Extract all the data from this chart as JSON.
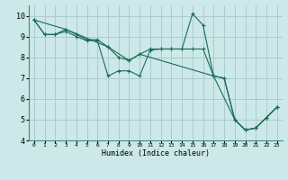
{
  "xlabel": "Humidex (Indice chaleur)",
  "bg_color": "#cce8e8",
  "grid_color": "#aacccc",
  "line_color": "#1a6b5a",
  "xlim": [
    -0.5,
    23.5
  ],
  "ylim": [
    4,
    10.5
  ],
  "xticks": [
    0,
    1,
    2,
    3,
    4,
    5,
    6,
    7,
    8,
    9,
    10,
    11,
    12,
    13,
    14,
    15,
    16,
    17,
    18,
    19,
    20,
    21,
    22,
    23
  ],
  "yticks": [
    4,
    5,
    6,
    7,
    8,
    9,
    10
  ],
  "series": [
    {
      "x": [
        0,
        1,
        2,
        3,
        4,
        5,
        6,
        7,
        8,
        9,
        10,
        11,
        12,
        13,
        14,
        15,
        16,
        17,
        18,
        19,
        20,
        21,
        22,
        23
      ],
      "y": [
        9.8,
        9.1,
        9.1,
        9.35,
        9.1,
        8.85,
        8.85,
        8.5,
        8.0,
        7.85,
        8.15,
        8.4,
        8.4,
        8.4,
        8.4,
        10.1,
        9.55,
        7.1,
        7.0,
        5.0,
        4.5,
        4.6,
        5.1,
        5.6
      ]
    },
    {
      "x": [
        0,
        1,
        2,
        3,
        4,
        5,
        6,
        7,
        8,
        9,
        10,
        11,
        12,
        13,
        14,
        15,
        16,
        17,
        18,
        19,
        20,
        21,
        22,
        23
      ],
      "y": [
        9.8,
        9.1,
        9.1,
        9.25,
        9.0,
        8.8,
        8.8,
        7.1,
        7.35,
        7.35,
        7.1,
        8.35,
        8.4,
        8.4,
        8.4,
        8.4,
        8.4,
        7.1,
        7.0,
        5.0,
        4.5,
        4.6,
        5.1,
        5.6
      ]
    },
    {
      "x": [
        0,
        3,
        7,
        9,
        10,
        17,
        19,
        20,
        21,
        22,
        23
      ],
      "y": [
        9.8,
        9.35,
        8.5,
        7.85,
        8.15,
        7.1,
        5.0,
        4.5,
        4.6,
        5.1,
        5.6
      ]
    }
  ]
}
